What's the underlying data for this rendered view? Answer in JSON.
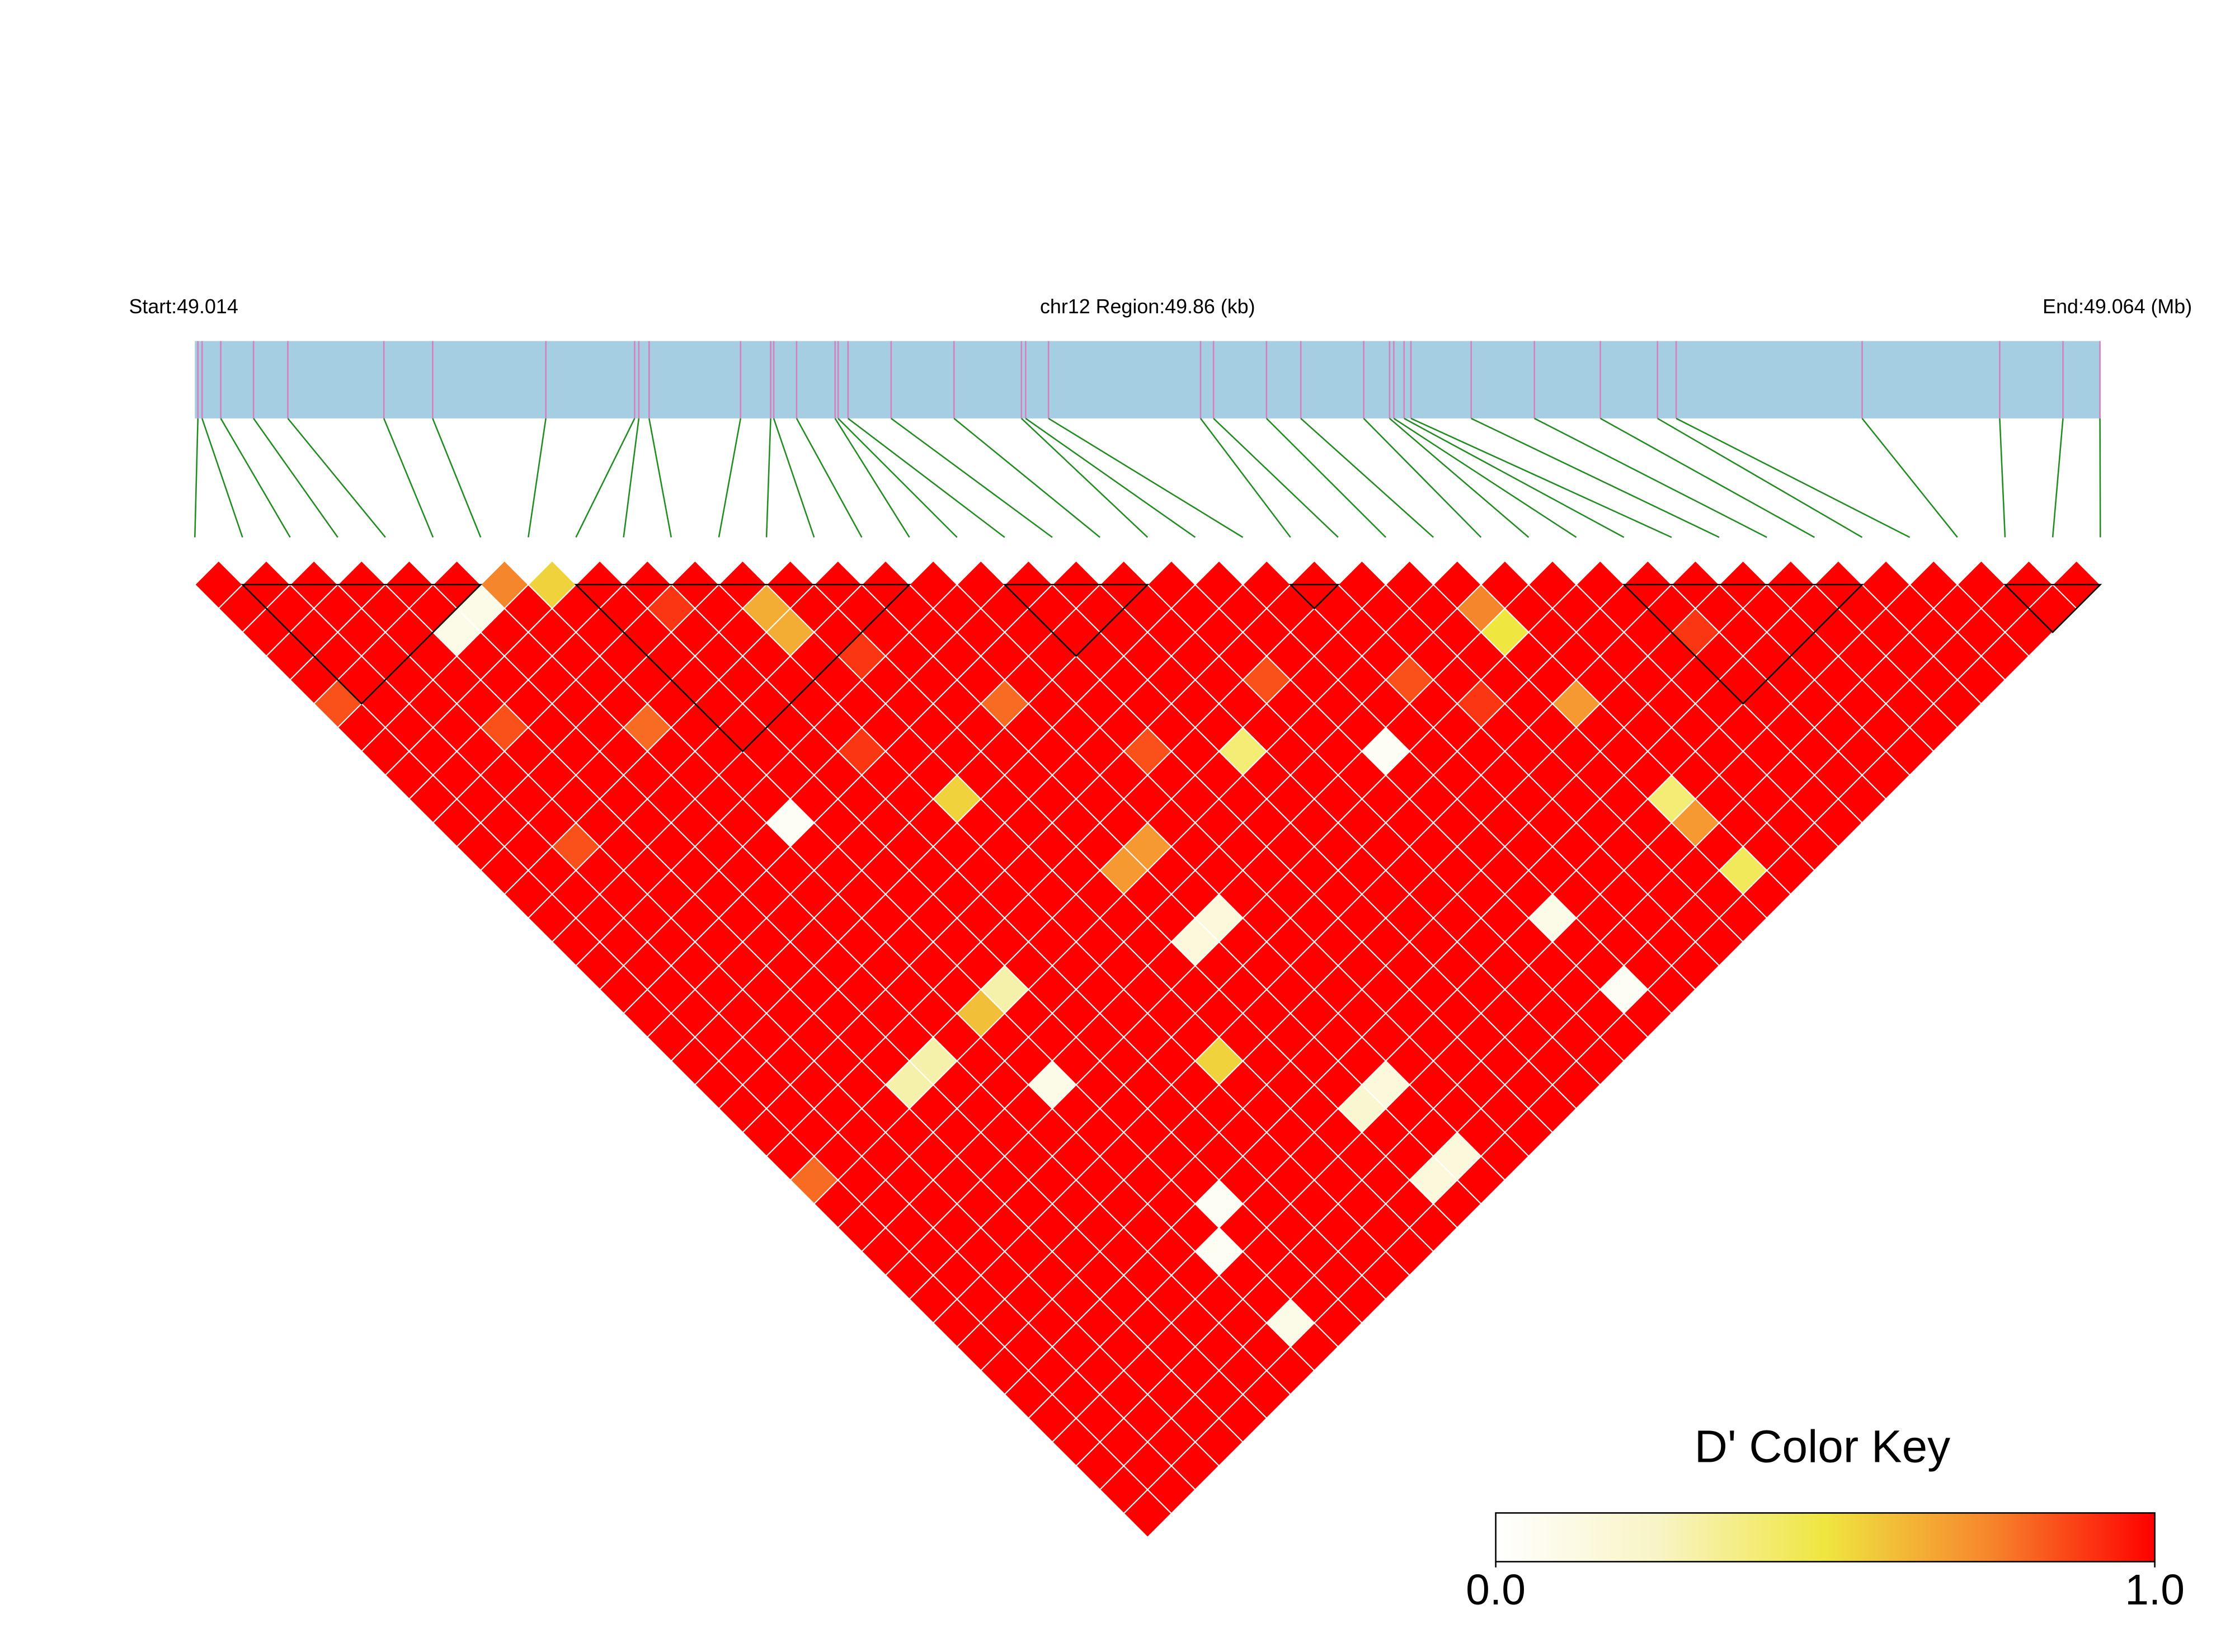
{
  "chart_data": {
    "type": "ld_heatmap",
    "start_label": "Start:49.014",
    "region_label": "chr12 Region:49.86 (kb)",
    "end_label": "End:49.064 (Mb)",
    "xlim": [
      49.014,
      49.064
    ],
    "snp_positions": [
      49.01408,
      49.01419,
      49.01468,
      49.01554,
      49.01644,
      49.01896,
      49.02024,
      49.02321,
      49.02554,
      49.02565,
      49.02592,
      49.02832,
      49.02911,
      49.02919,
      49.02979,
      49.0308,
      49.03088,
      49.03114,
      49.03227,
      49.03392,
      49.03569,
      49.0358,
      49.0364,
      49.04039,
      49.04073,
      49.04212,
      49.04302,
      49.04467,
      49.04535,
      49.04546,
      49.04573,
      49.04591,
      49.04749,
      49.04915,
      49.05088,
      49.05238,
      49.05287,
      49.05775,
      49.06136,
      49.06302,
      49.06399
    ],
    "dprime": [
      [
        1,
        1,
        1,
        1,
        1,
        0.85,
        1,
        1,
        1,
        1,
        1,
        1,
        1,
        1,
        1,
        1,
        1,
        1,
        1,
        1,
        1,
        1,
        1,
        1,
        1,
        0.8,
        1,
        1,
        1,
        1,
        1,
        1,
        1,
        1,
        1,
        1,
        1,
        1,
        1,
        1
      ],
      [
        1,
        1,
        1,
        1,
        1,
        1,
        1,
        1,
        1,
        1,
        1,
        1,
        1,
        1,
        1,
        1,
        1,
        1,
        1,
        1,
        1,
        1,
        1,
        1,
        1,
        1,
        1,
        1,
        1,
        1,
        1,
        1,
        1,
        1,
        1,
        1,
        1,
        1,
        1
      ],
      [
        1,
        1,
        1,
        1,
        1,
        1,
        1,
        1,
        1,
        1,
        1,
        0.85,
        1,
        1,
        1,
        1,
        1,
        1,
        1,
        1,
        1,
        1,
        1,
        1,
        1,
        1,
        1,
        1,
        1,
        1,
        1,
        1,
        1,
        1,
        1,
        1,
        1,
        1
      ],
      [
        1,
        1,
        1,
        1,
        1,
        1,
        0.85,
        1,
        1,
        1,
        1,
        1,
        1,
        1,
        1,
        1,
        1,
        1,
        1,
        1,
        1,
        1,
        1,
        1,
        1,
        1,
        1,
        1,
        1,
        1,
        1,
        1,
        1,
        1,
        1,
        1,
        1
      ],
      [
        1,
        1,
        0.1,
        1,
        1,
        1,
        1,
        1,
        1,
        1,
        1,
        1,
        1,
        1,
        1,
        1,
        1,
        1,
        1,
        1,
        1,
        0.3,
        1,
        1,
        1,
        1,
        1,
        1,
        1,
        1,
        1,
        1,
        1,
        1,
        1,
        1
      ],
      [
        1,
        0.1,
        1,
        1,
        1,
        1,
        1,
        1,
        1,
        1,
        1,
        1,
        1,
        1,
        1,
        1,
        1,
        1,
        1,
        1,
        0.3,
        1,
        1,
        1,
        1,
        1,
        1,
        1,
        1,
        1,
        1,
        1,
        1,
        1,
        1
      ],
      [
        0.75,
        1,
        1,
        1,
        1,
        1,
        0.8,
        1,
        1,
        1,
        1,
        1,
        1,
        1,
        1,
        1,
        1,
        1,
        1,
        1,
        1,
        1,
        1,
        1,
        1,
        1,
        1,
        1,
        1,
        1,
        1,
        1,
        1,
        1
      ],
      [
        0.55,
        1,
        1,
        1,
        1,
        1,
        1,
        1,
        1,
        1,
        0.05,
        1,
        1,
        1,
        1,
        1,
        1,
        1,
        0.6,
        1,
        1,
        0.1,
        1,
        1,
        1,
        1,
        1,
        1,
        0.05,
        1,
        1,
        0.1,
        1
      ],
      [
        1,
        1,
        1,
        1,
        1,
        1,
        1,
        1,
        1,
        1,
        1,
        1,
        1,
        1,
        1,
        1,
        1,
        0.3,
        1,
        1,
        1,
        1,
        1,
        1,
        1,
        1,
        0.05,
        1,
        1,
        1,
        1,
        1
      ],
      [
        1,
        0.9,
        1,
        1,
        1,
        1,
        1,
        1,
        1,
        1,
        1,
        1,
        1,
        1,
        1,
        1,
        1,
        1,
        1,
        1,
        1,
        1,
        1,
        1,
        1,
        1,
        1,
        1,
        1,
        1,
        1
      ],
      [
        1,
        1,
        1,
        1,
        1,
        1,
        1,
        0.9,
        1,
        1,
        1,
        1,
        1,
        1,
        1,
        1,
        1,
        1,
        1,
        1,
        1,
        1,
        1,
        1,
        1,
        1,
        1,
        1,
        1,
        1
      ],
      [
        1,
        0.65,
        0.65,
        1,
        1,
        1,
        1,
        1,
        1,
        0.55,
        1,
        1,
        1,
        1,
        1,
        1,
        1,
        1,
        1,
        1,
        0.55,
        1,
        1,
        1,
        1,
        1,
        1,
        1,
        1
      ],
      [
        1,
        1,
        1,
        0.9,
        1,
        1,
        1,
        1,
        1,
        1,
        1,
        1,
        1,
        1,
        1,
        1,
        1,
        1,
        1,
        1,
        1,
        1,
        1,
        1,
        1,
        1,
        1,
        1
      ],
      [
        1,
        1,
        1,
        1,
        1,
        1,
        1,
        1,
        1,
        1,
        1,
        1,
        0.7,
        1,
        1,
        0.15,
        1,
        1,
        1,
        1,
        1,
        1,
        0.2,
        1,
        1,
        0.15,
        1
      ],
      [
        1,
        1,
        1,
        1,
        1,
        0.8,
        1,
        1,
        1,
        1,
        1,
        0.7,
        1,
        1,
        0.15,
        1,
        1,
        1,
        1,
        1,
        1,
        0.15,
        1,
        1,
        0.15,
        1
      ],
      [
        1,
        1,
        1,
        1,
        1,
        1,
        1,
        1,
        1,
        1,
        1,
        1,
        1,
        1,
        1,
        1,
        1,
        1,
        1,
        1,
        1,
        1,
        1,
        1,
        1
      ],
      [
        1,
        1,
        1,
        1,
        1,
        1,
        1,
        0.85,
        1,
        1,
        1,
        1,
        1,
        1,
        1,
        1,
        1,
        1,
        1,
        1,
        1,
        1,
        1,
        1
      ],
      [
        1,
        1,
        1,
        1,
        1,
        1,
        1,
        1,
        1,
        1,
        1,
        1,
        1,
        1,
        1,
        1,
        1,
        1,
        1,
        1,
        1,
        1,
        1
      ],
      [
        1,
        1,
        1,
        1,
        1,
        1,
        1,
        0.4,
        1,
        1,
        1,
        1,
        1,
        1,
        1,
        1,
        1,
        1,
        1,
        1,
        1,
        1
      ],
      [
        1,
        1,
        1,
        1,
        1,
        1,
        1,
        1,
        1,
        1,
        1,
        1,
        1,
        1,
        1,
        1,
        1,
        1,
        1,
        1,
        1
      ],
      [
        1,
        1,
        1,
        1,
        0.85,
        1,
        1,
        1,
        1,
        1,
        1,
        1,
        1,
        1,
        1,
        1,
        1,
        1,
        1,
        1
      ],
      [
        1,
        1,
        1,
        1,
        1,
        1,
        1,
        0.05,
        1,
        1,
        1,
        1,
        1,
        1,
        0.1,
        1,
        1,
        0.05,
        1
      ],
      [
        1,
        1,
        1,
        1,
        1,
        1,
        1,
        1,
        1,
        1,
        1,
        1,
        1,
        1,
        1,
        1,
        1,
        1
      ],
      [
        1,
        1,
        1,
        1,
        0.85,
        1,
        1,
        1,
        1,
        1,
        1,
        1,
        1,
        1,
        1,
        1,
        1
      ],
      [
        1,
        1,
        1,
        1,
        1,
        0.9,
        1,
        1,
        1,
        1,
        1,
        1,
        1,
        1,
        1,
        1
      ],
      [
        1,
        1,
        1,
        1,
        1,
        1,
        1,
        1,
        1,
        1,
        1,
        1,
        1,
        1,
        1
      ],
      [
        1,
        0.75,
        0.5,
        1,
        1,
        0.7,
        1,
        1,
        1,
        0.4,
        0.7,
        1,
        0.45,
        1
      ],
      [
        1,
        1,
        1,
        1,
        1,
        1,
        1,
        1,
        1,
        1,
        1,
        1,
        1
      ],
      [
        1,
        1,
        1,
        1,
        1,
        1,
        1,
        1,
        1,
        1,
        1,
        1
      ],
      [
        1,
        1,
        1,
        1,
        1,
        1,
        1,
        1,
        1,
        1,
        1
      ],
      [
        1,
        1,
        0.9,
        1,
        1,
        1,
        1,
        1,
        1,
        1
      ],
      [
        1,
        1,
        1,
        1,
        1,
        1,
        1,
        1,
        1
      ],
      [
        1,
        1,
        1,
        1,
        1,
        1,
        1,
        1
      ],
      [
        1,
        1,
        1,
        1,
        1,
        1,
        1
      ],
      [
        1,
        1,
        1,
        1,
        1,
        1
      ],
      [
        1,
        1,
        1,
        1,
        1
      ],
      [
        1,
        1,
        1,
        1
      ],
      [
        1,
        1,
        1
      ],
      [
        1,
        1
      ],
      [
        1
      ]
    ],
    "blocks": [
      [
        1,
        6
      ],
      [
        8,
        15
      ],
      [
        17,
        20
      ],
      [
        23,
        24
      ],
      [
        30,
        35
      ],
      [
        38,
        40
      ]
    ],
    "colors": [
      "#ffffff",
      "#f8f4c4",
      "#efe640",
      "#f6862c",
      "#ff0000"
    ],
    "key_title": "D' Color Key",
    "key_lim": [
      0,
      1
    ],
    "key_ticks": [
      {
        "value": 0,
        "label": "0.0"
      },
      {
        "value": 1,
        "label": "1.0"
      }
    ]
  }
}
